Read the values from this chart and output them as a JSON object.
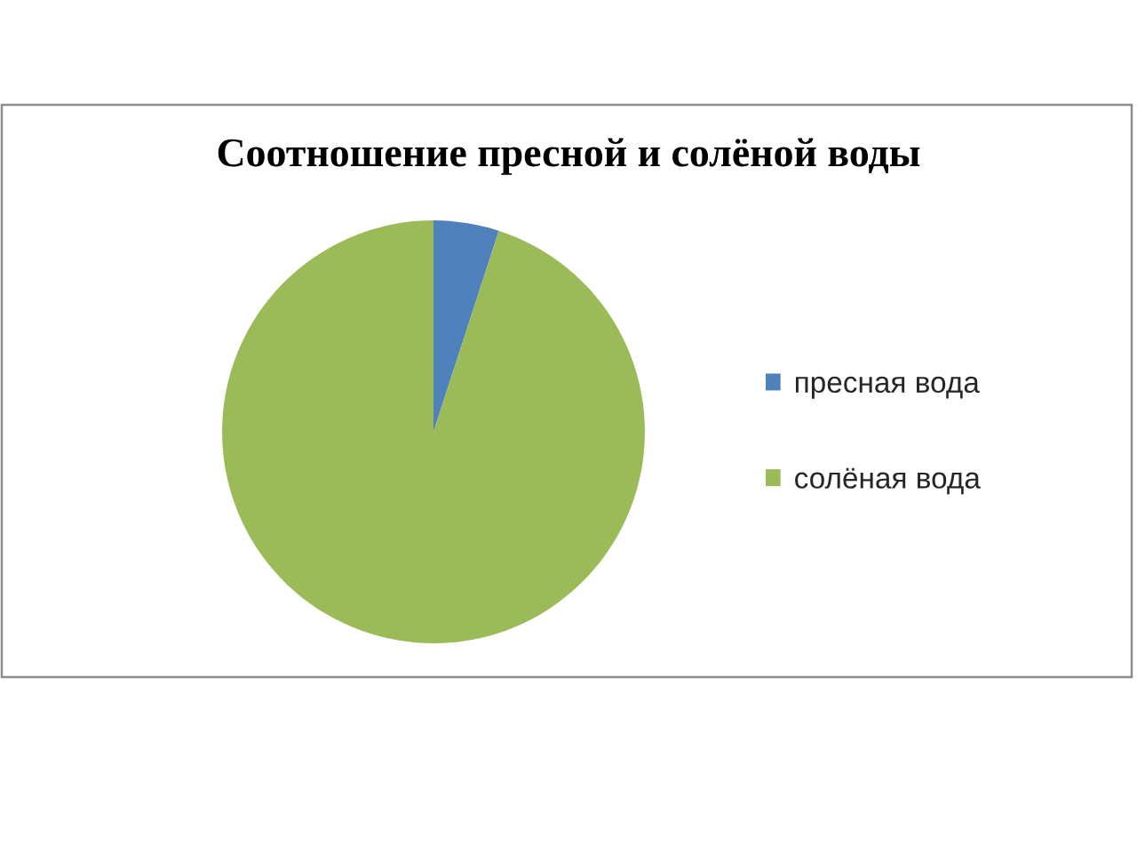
{
  "chart_data": {
    "type": "pie",
    "title": "Соотношение пресной и солёной воды",
    "categories": [
      "пресная вода",
      "солёная вода"
    ],
    "values": [
      5,
      95
    ],
    "colors": [
      "#4f81bd",
      "#9bbb59"
    ],
    "legend": "right"
  }
}
